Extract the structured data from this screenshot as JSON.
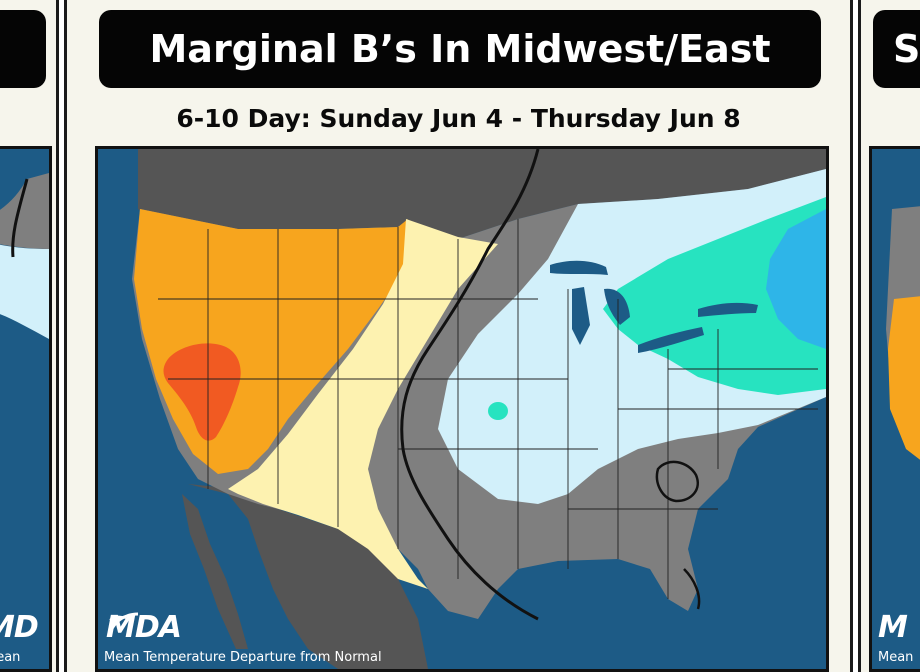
{
  "slide": {
    "title": "Marginal B’s In Midwest/East",
    "subtitle": "6-10 Day: Sunday Jun 4 - Thursday Jun 8"
  },
  "map": {
    "logo": "MDA",
    "caption": "Mean Temperature Departure from Normal",
    "legend_colors": {
      "much_above": "#f15a22",
      "above": "#f7a51e",
      "slightly_above": "#fdf2b0",
      "near_normal": "#7f7f7f",
      "slightly_below": "#d2f0fa",
      "below": "#27e3c0",
      "much_below": "#2eb5e8",
      "water": "#1d5b86",
      "land_outside": "#555555"
    }
  },
  "left_neighbor": {
    "logo_fragment": "MD",
    "caption_fragment": "Mean"
  },
  "right_neighbor": {
    "title_fragment": "S",
    "logo_fragment": "M",
    "caption_fragment": "Mean"
  }
}
